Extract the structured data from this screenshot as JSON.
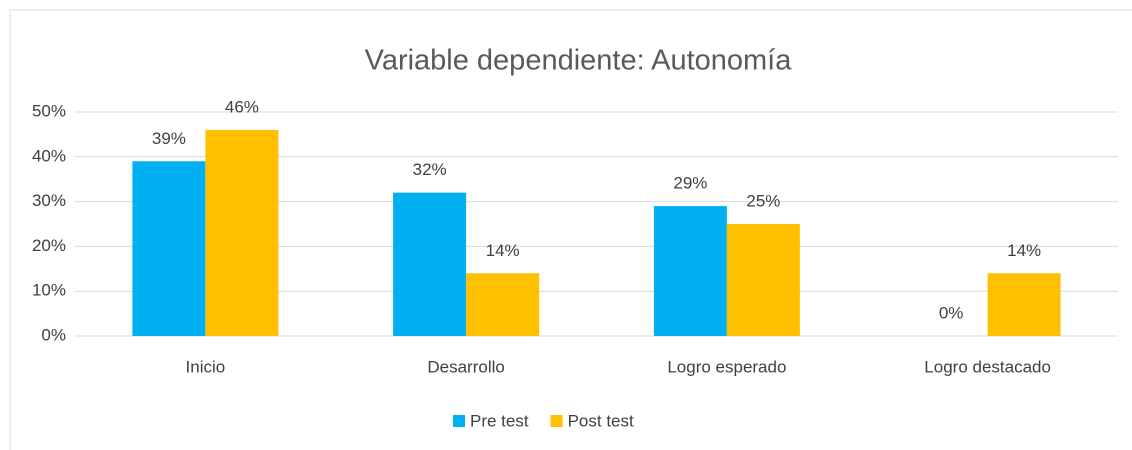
{
  "chart_data": {
    "type": "bar",
    "title": "Variable dependiente: Autonomía",
    "categories": [
      "Inicio",
      "Desarrollo",
      "Logro esperado",
      "Logro destacado"
    ],
    "series": [
      {
        "name": "Pre test",
        "color": "#00b0f0",
        "values": [
          39,
          32,
          29,
          0
        ],
        "value_labels": [
          "39%",
          "32%",
          "29%",
          "0%"
        ]
      },
      {
        "name": "Post test",
        "color": "#ffc000",
        "values": [
          46,
          14,
          25,
          14
        ],
        "value_labels": [
          "46%",
          "14%",
          "25%",
          "14%"
        ]
      }
    ],
    "ylim": [
      0,
      50
    ],
    "yticks": [
      {
        "value": 0,
        "label": "0%"
      },
      {
        "value": 10,
        "label": "10%"
      },
      {
        "value": 20,
        "label": "20%"
      },
      {
        "value": 30,
        "label": "30%"
      },
      {
        "value": 40,
        "label": "40%"
      },
      {
        "value": 50,
        "label": "50%"
      }
    ],
    "grid": true,
    "legend": "bottom"
  }
}
